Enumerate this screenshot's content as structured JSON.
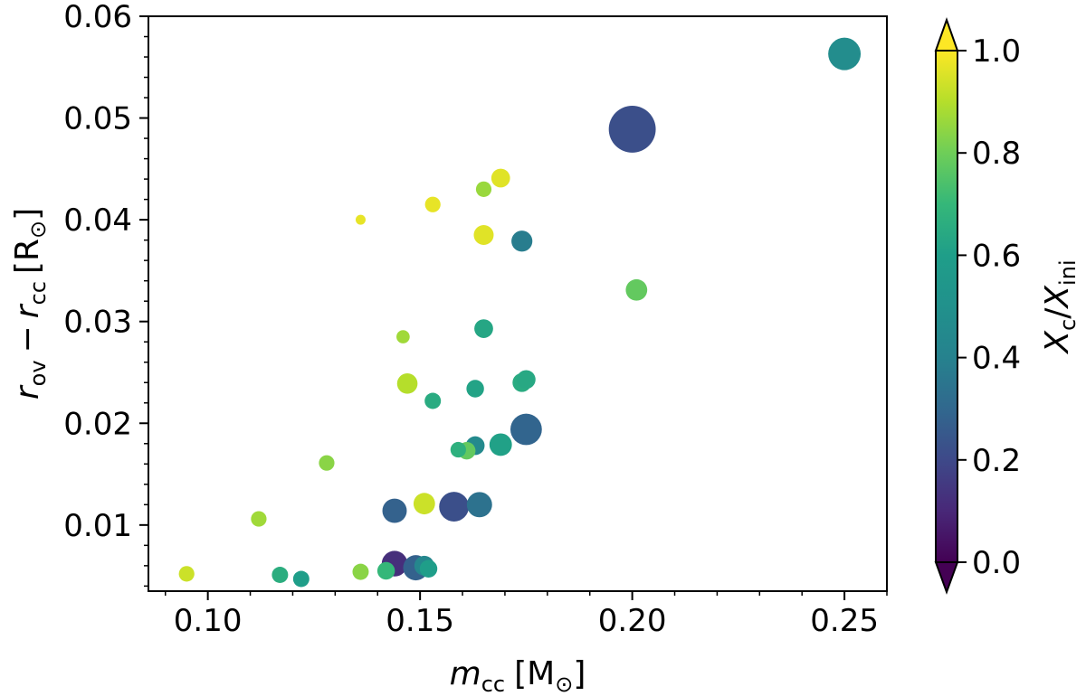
{
  "chart_data": {
    "type": "scatter",
    "xlabel": {
      "var": "m",
      "sub": "cc",
      "unit_open": "[M",
      "unit_sym": "⊙",
      "unit_close": "]"
    },
    "ylabel": {
      "var1": "r",
      "sub1": "ov",
      "minus": "−",
      "var2": "r",
      "sub2": "cc",
      "unit_open": "[R",
      "unit_sym": "⊙",
      "unit_close": "]"
    },
    "xlim": [
      0.086,
      0.26
    ],
    "ylim": [
      0.0035,
      0.06
    ],
    "x_ticks": [
      {
        "value": 0.1,
        "label": "0.10"
      },
      {
        "value": 0.15,
        "label": "0.15"
      },
      {
        "value": 0.2,
        "label": "0.20"
      },
      {
        "value": 0.25,
        "label": "0.25"
      }
    ],
    "y_ticks": [
      {
        "value": 0.01,
        "label": "0.01"
      },
      {
        "value": 0.02,
        "label": "0.02"
      },
      {
        "value": 0.03,
        "label": "0.03"
      },
      {
        "value": 0.04,
        "label": "0.04"
      },
      {
        "value": 0.05,
        "label": "0.05"
      },
      {
        "value": 0.06,
        "label": "0.06"
      }
    ],
    "colorbar": {
      "label": {
        "var1": "X",
        "sub1": "c",
        "slash": "/",
        "var2": "X",
        "sub2": "ini"
      },
      "range": [
        0,
        1
      ],
      "extend": "both",
      "colormap": "viridis",
      "ticks": [
        {
          "value": 0.0,
          "label": "0.0"
        },
        {
          "value": 0.2,
          "label": "0.2"
        },
        {
          "value": 0.4,
          "label": "0.4"
        },
        {
          "value": 0.6,
          "label": "0.6"
        },
        {
          "value": 0.8,
          "label": "0.8"
        },
        {
          "value": 1.0,
          "label": "1.0"
        }
      ]
    },
    "size_encoding": "marker area",
    "points": [
      {
        "x": 0.095,
        "y": 0.0052,
        "c": 0.93,
        "s": 1.1
      },
      {
        "x": 0.112,
        "y": 0.0106,
        "c": 0.87,
        "s": 1.1
      },
      {
        "x": 0.117,
        "y": 0.0051,
        "c": 0.66,
        "s": 1.2
      },
      {
        "x": 0.122,
        "y": 0.0047,
        "c": 0.6,
        "s": 1.2
      },
      {
        "x": 0.128,
        "y": 0.0161,
        "c": 0.84,
        "s": 1.1
      },
      {
        "x": 0.136,
        "y": 0.04,
        "c": 0.97,
        "s": 0.45
      },
      {
        "x": 0.136,
        "y": 0.0054,
        "c": 0.84,
        "s": 1.2
      },
      {
        "x": 0.142,
        "y": 0.0055,
        "c": 0.7,
        "s": 1.4
      },
      {
        "x": 0.144,
        "y": 0.0062,
        "c": 0.12,
        "s": 3.0
      },
      {
        "x": 0.144,
        "y": 0.0114,
        "c": 0.28,
        "s": 2.7
      },
      {
        "x": 0.146,
        "y": 0.0285,
        "c": 0.87,
        "s": 0.8
      },
      {
        "x": 0.147,
        "y": 0.0239,
        "c": 0.9,
        "s": 1.9
      },
      {
        "x": 0.149,
        "y": 0.0058,
        "c": 0.28,
        "s": 2.9
      },
      {
        "x": 0.151,
        "y": 0.0121,
        "c": 0.93,
        "s": 2.1
      },
      {
        "x": 0.151,
        "y": 0.006,
        "c": 0.43,
        "s": 1.8
      },
      {
        "x": 0.152,
        "y": 0.0057,
        "c": 0.6,
        "s": 1.4
      },
      {
        "x": 0.153,
        "y": 0.0415,
        "c": 0.97,
        "s": 1.1
      },
      {
        "x": 0.153,
        "y": 0.0222,
        "c": 0.65,
        "s": 1.2
      },
      {
        "x": 0.158,
        "y": 0.0118,
        "c": 0.22,
        "s": 4.0
      },
      {
        "x": 0.159,
        "y": 0.0174,
        "c": 0.67,
        "s": 1.1
      },
      {
        "x": 0.161,
        "y": 0.0173,
        "c": 0.78,
        "s": 1.4
      },
      {
        "x": 0.163,
        "y": 0.0234,
        "c": 0.62,
        "s": 1.4
      },
      {
        "x": 0.163,
        "y": 0.0178,
        "c": 0.45,
        "s": 1.6
      },
      {
        "x": 0.164,
        "y": 0.012,
        "c": 0.34,
        "s": 2.9
      },
      {
        "x": 0.165,
        "y": 0.0385,
        "c": 0.96,
        "s": 1.8
      },
      {
        "x": 0.165,
        "y": 0.043,
        "c": 0.86,
        "s": 1.1
      },
      {
        "x": 0.165,
        "y": 0.0293,
        "c": 0.63,
        "s": 1.6
      },
      {
        "x": 0.169,
        "y": 0.0441,
        "c": 0.96,
        "s": 1.6
      },
      {
        "x": 0.169,
        "y": 0.0179,
        "c": 0.61,
        "s": 2.3
      },
      {
        "x": 0.174,
        "y": 0.0379,
        "c": 0.38,
        "s": 2.0
      },
      {
        "x": 0.174,
        "y": 0.024,
        "c": 0.65,
        "s": 1.6
      },
      {
        "x": 0.175,
        "y": 0.0243,
        "c": 0.64,
        "s": 1.6
      },
      {
        "x": 0.175,
        "y": 0.0194,
        "c": 0.29,
        "s": 4.5
      },
      {
        "x": 0.2,
        "y": 0.0489,
        "c": 0.22,
        "s": 10.0
      },
      {
        "x": 0.201,
        "y": 0.0331,
        "c": 0.78,
        "s": 2.1
      },
      {
        "x": 0.25,
        "y": 0.0563,
        "c": 0.47,
        "s": 4.8
      }
    ]
  }
}
